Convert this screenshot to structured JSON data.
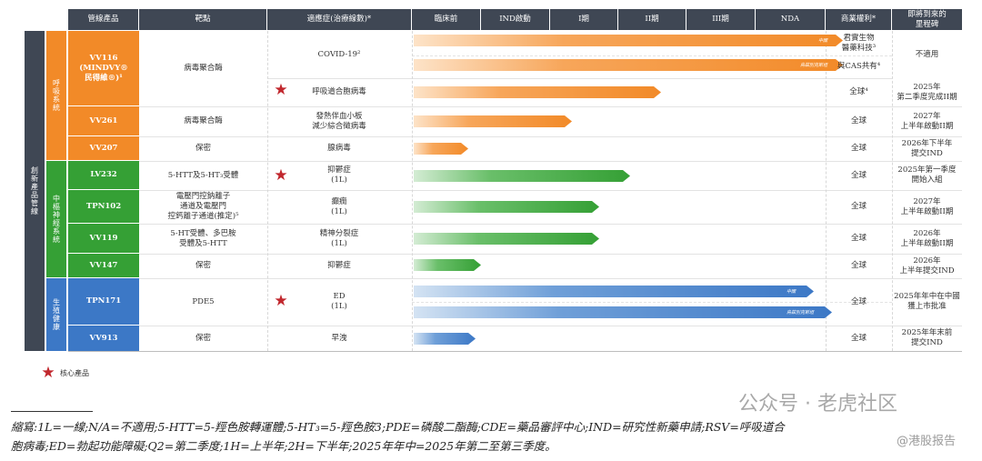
{
  "headers": {
    "product": "管線產品",
    "target": "靶點",
    "indication": "適應症(治療線數)*",
    "preclinical": "臨床前",
    "ind": "IND啟動",
    "p1": "I期",
    "p2": "II期",
    "p3": "III期",
    "nda": "NDA",
    "rights": "商業權利*",
    "milestone": "即將到來的\n里程碑"
  },
  "side_label": "創新產品管線",
  "groups": [
    {
      "label": "呼吸系統",
      "color": "#f28a28"
    },
    {
      "label": "中樞神經系統",
      "color": "#35a035"
    },
    {
      "label": "生殖健康",
      "color": "#3c78c6"
    }
  ],
  "rows": [
    {
      "code": "VV116\n(MINDVY®\n民得維®)¹",
      "target": "病毒聚合酶",
      "indication": "COVID-19²",
      "rights": "君實生物\n醫藥科技³",
      "milestone": "不適用",
      "bar_label": "中國"
    },
    {
      "rights": "與CAS共有⁴",
      "bar_label": "烏茲別克斯坦"
    },
    {
      "indication": "呼吸道合胞病毒",
      "rights": "全球⁴",
      "milestone": "2025年\n第二季度完成II期"
    },
    {
      "code": "VV261",
      "target": "病毒聚合酶",
      "indication": "發熱伴血小板\n減少綜合徵病毒",
      "rights": "全球",
      "milestone": "2027年\n上半年啟動II期"
    },
    {
      "code": "VV207",
      "target": "保密",
      "indication": "腺病毒",
      "rights": "全球",
      "milestone": "2026年下半年\n提交IND"
    },
    {
      "code": "LV232",
      "target": "5-HTT及5-HT₃受體",
      "indication": "抑鬱症\n(1L)",
      "rights": "全球",
      "milestone": "2025年第一季度\n開始入組"
    },
    {
      "code": "TPN102",
      "target": "電壓門控鈉離子\n通道及電壓門\n控鈣離子通道(推定)⁵",
      "indication": "癲癇\n(1L)",
      "rights": "全球",
      "milestone": "2027年\n上半年啟動II期"
    },
    {
      "code": "VV119",
      "target": "5-HT受體、多巴胺\n受體及5-HTT",
      "indication": "精神分裂症\n(1L)",
      "rights": "全球",
      "milestone": "2026年\n上半年啟動II期"
    },
    {
      "code": "VV147",
      "target": "保密",
      "indication": "抑鬱症",
      "rights": "全球",
      "milestone": "2026年\n上半年提交IND"
    },
    {
      "code": "TPN171",
      "target": "PDE5",
      "indication": "ED\n(1L)",
      "rights": "全球",
      "milestone": "2025年年中在中國\n獲上市批准",
      "bar_label": "中國"
    },
    {
      "bar_label": "烏茲別克斯坦"
    },
    {
      "code": "VV913",
      "target": "保密",
      "indication": "早洩",
      "rights": "全球",
      "milestone": "2025年年末前\n提交IND"
    }
  ],
  "legend": {
    "label": "核心產品",
    "icon": "star-icon"
  },
  "footnote": {
    "line1": "縮寫:1L=一線;N/A=不適用;5-HTT=5-羥色胺轉運體;5-HT₃=5-羥色胺3;PDE=磷酸二酯酶;CDE=藥品審評中心;IND=研究性新藥申請;RSV=呼吸道合",
    "line2": "胞病毒;ED=勃起功能障礙;Q2=第二季度;1H=上半年;2H=下半年;2025年年中=2025年第二至第三季度。"
  },
  "watermark": {
    "brand": "公众号 · 老虎社区",
    "sub": "@港股报告"
  }
}
